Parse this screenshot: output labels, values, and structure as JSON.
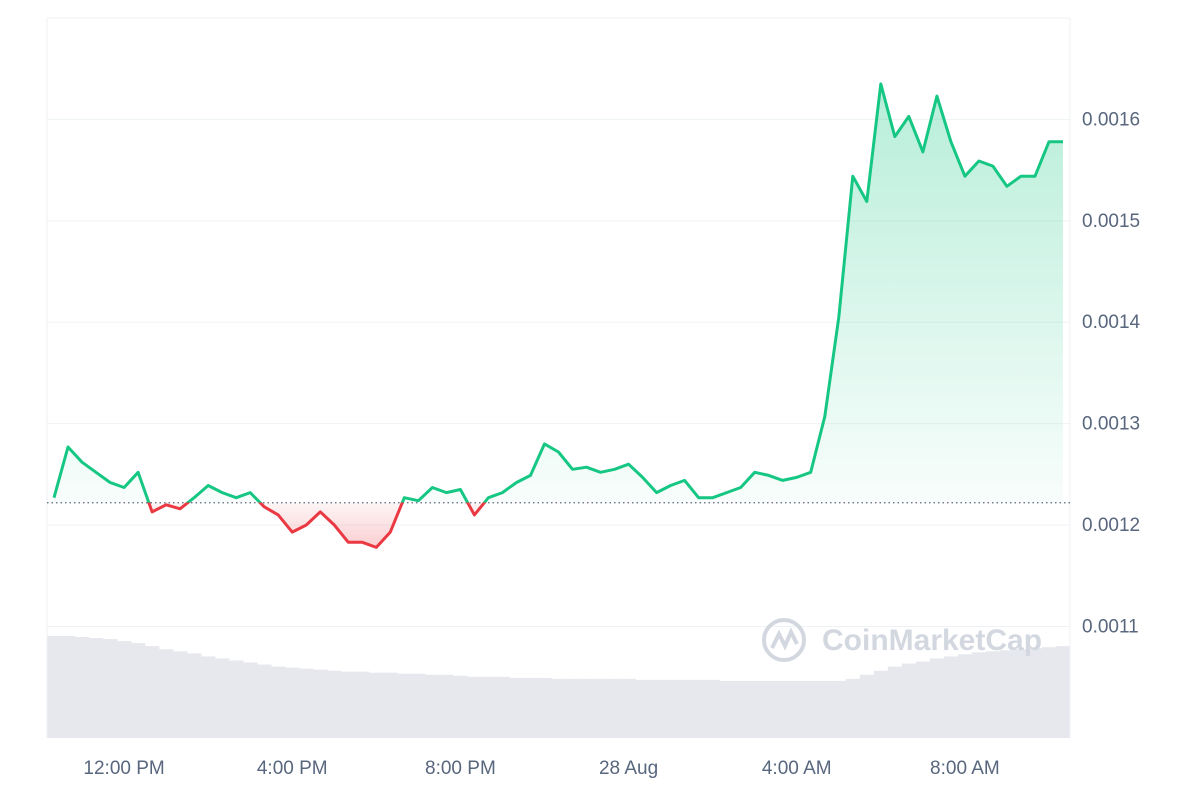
{
  "chart_data": {
    "type": "line",
    "watermark": "CoinMarketCap",
    "categories": [
      null,
      null,
      null,
      null,
      null,
      "12:00 PM",
      null,
      null,
      null,
      null,
      null,
      null,
      null,
      null,
      null,
      null,
      null,
      "4:00 PM",
      null,
      null,
      null,
      null,
      null,
      null,
      null,
      null,
      null,
      null,
      null,
      "8:00 PM",
      null,
      null,
      null,
      null,
      null,
      null,
      null,
      null,
      null,
      null,
      null,
      "28 Aug",
      null,
      null,
      null,
      null,
      null,
      null,
      null,
      null,
      null,
      null,
      null,
      "4:00 AM",
      null,
      null,
      null,
      null,
      null,
      null,
      null,
      null,
      null,
      null,
      null,
      "8:00 AM",
      null,
      null,
      null,
      null,
      null,
      null,
      null
    ],
    "values": [
      0.001227,
      0.001277,
      0.001262,
      0.001252,
      0.001242,
      0.001237,
      0.001252,
      0.001213,
      0.00122,
      0.001216,
      0.001227,
      0.001239,
      0.001232,
      0.001227,
      0.001232,
      0.001218,
      0.00121,
      0.001193,
      0.0012,
      0.001213,
      0.0012,
      0.001183,
      0.001183,
      0.001178,
      0.001193,
      0.001227,
      0.001224,
      0.001237,
      0.001232,
      0.001235,
      0.00121,
      0.001227,
      0.001232,
      0.001242,
      0.001249,
      0.00128,
      0.001272,
      0.001255,
      0.001257,
      0.001252,
      0.001255,
      0.00126,
      0.001247,
      0.001232,
      0.001239,
      0.001244,
      0.001227,
      0.001227,
      0.001232,
      0.001237,
      0.001252,
      0.001249,
      0.001244,
      0.001247,
      0.001252,
      0.001307,
      0.001405,
      0.001544,
      0.001519,
      0.001635,
      0.001583,
      0.001603,
      0.001568,
      0.001623,
      0.001578,
      0.001544,
      0.001559,
      0.001554,
      0.001534,
      0.001544,
      0.001544,
      0.001578,
      0.001578
    ],
    "volume": [
      100,
      100,
      99,
      98,
      97,
      95,
      93,
      90,
      87,
      85,
      83,
      80,
      78,
      76,
      74,
      72,
      70,
      69,
      68,
      67,
      66,
      65,
      65,
      64,
      64,
      63,
      63,
      62,
      62,
      61,
      60,
      60,
      60,
      59,
      59,
      59,
      58,
      58,
      58,
      58,
      58,
      58,
      57,
      57,
      57,
      57,
      57,
      57,
      56,
      56,
      56,
      56,
      56,
      56,
      56,
      56,
      56,
      58,
      62,
      66,
      70,
      73,
      75,
      78,
      80,
      82,
      84,
      85,
      86,
      87,
      88,
      89,
      90
    ],
    "baseline": 0.001222,
    "up_color": "#16c784",
    "down_color": "#ea3943",
    "volume_color": "#e6e8ed",
    "ylim": [
      0.00099,
      0.0017
    ],
    "yticks": [
      0.0011,
      0.0012,
      0.0013,
      0.0014,
      0.0015,
      0.0016
    ],
    "grid": true
  }
}
